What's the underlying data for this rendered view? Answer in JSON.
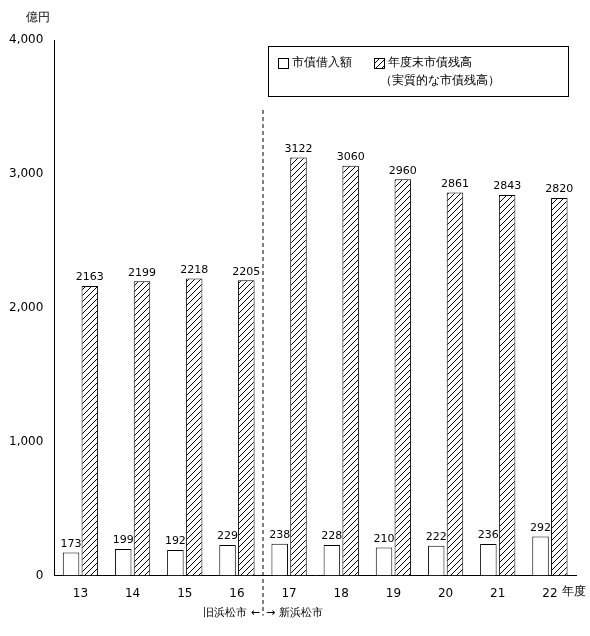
{
  "chart_data": {
    "type": "bar",
    "y_label": "億円",
    "x_label": "年度",
    "categories": [
      "13",
      "14",
      "15",
      "16",
      "17",
      "18",
      "19",
      "20",
      "21",
      "22"
    ],
    "series": [
      {
        "name": "市債借入額",
        "color": "#ffffff",
        "values": [
          173,
          199,
          192,
          229,
          238,
          228,
          210,
          222,
          236,
          292
        ]
      },
      {
        "name": "年度末市債残高（実質的な市債残高）",
        "color": "#000000",
        "values": [
          2163,
          2199,
          2218,
          2205,
          3122,
          3060,
          2960,
          2861,
          2843,
          2820
        ]
      }
    ],
    "ylim": [
      0,
      4000
    ],
    "yticks": [
      0,
      {
        "value": 1000,
        "label": "1,000"
      },
      {
        "value": 2000,
        "label": "2,000"
      },
      {
        "value": 3000,
        "label": "3,000"
      },
      {
        "value": 4000,
        "label": "4,000"
      }
    ],
    "grid": false,
    "legend": "top-right",
    "data_labels": true,
    "annotations": [
      {
        "text": "旧浜松市 ←",
        "category": "16"
      },
      {
        "text": "→ 新浜松市",
        "category": "17"
      }
    ]
  }
}
